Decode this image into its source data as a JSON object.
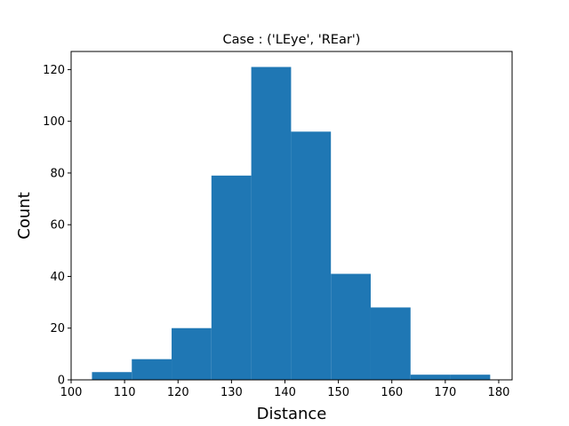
{
  "chart_data": {
    "type": "bar",
    "title": "Case : ('LEye', 'REar')",
    "xlabel": "Distance",
    "ylabel": "Count",
    "bin_edges": [
      103.9,
      111.35,
      118.8,
      126.25,
      133.7,
      141.15,
      148.6,
      156.05,
      163.5,
      170.95,
      178.4
    ],
    "values": [
      3,
      8,
      20,
      79,
      121,
      96,
      41,
      28,
      2,
      2
    ],
    "xlim": [
      100,
      182.5
    ],
    "ylim": [
      0,
      127
    ],
    "xticks": [
      100,
      110,
      120,
      130,
      140,
      150,
      160,
      170,
      180
    ],
    "yticks": [
      0,
      20,
      40,
      60,
      80,
      100,
      120
    ],
    "bar_color": "#1f77b4",
    "grid": false,
    "legend": "none"
  }
}
